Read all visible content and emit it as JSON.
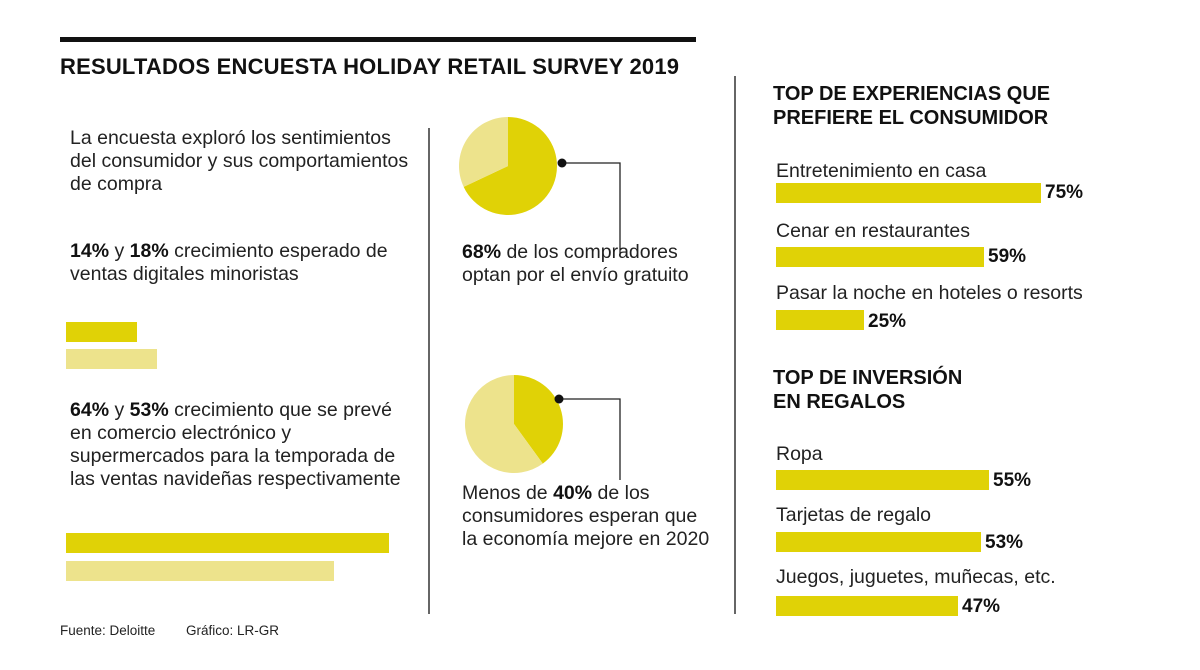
{
  "title": "RESULTADOS ENCUESTA HOLIDAY RETAIL SURVEY 2019",
  "colors": {
    "accent": "#e0d206",
    "accent_light": "#ede38c",
    "rule": "#111111"
  },
  "left": {
    "intro": "La encuesta exploró los sentimientos del consumidor y sus comportamientos de compra",
    "digital": {
      "a_value": "14%",
      "a_joiner": " y ",
      "b_value": "18%",
      "text": " crecimiento esperado de ventas digitales minoristas"
    },
    "ecommerce": {
      "a_value": "64%",
      "a_joiner": " y ",
      "b_value": "53%",
      "text": " crecimiento que se prevé en comercio electrónico y supermercados para la temporada de las ventas navideñas respectivamente"
    }
  },
  "middle": {
    "free_shipping": {
      "value": "68%",
      "text": " de los compradores optan por el envío gratuito"
    },
    "economy": {
      "prefix": "Menos de ",
      "value": "40%",
      "text": " de los consumidores esperan que la economía mejore en 2020"
    }
  },
  "right": {
    "experiences_title": "TOP DE EXPERIENCIAS QUE PREFIERE EL CONSUMIDOR",
    "experiences": [
      {
        "label": "Entretenimiento en casa",
        "pct": "75%"
      },
      {
        "label": "Cenar en restaurantes",
        "pct": "59%"
      },
      {
        "label": "Pasar la noche en hoteles o resorts",
        "pct": "25%"
      }
    ],
    "gifts_title": "TOP DE INVERSIÓN EN REGALOS",
    "gifts": [
      {
        "label": "Ropa",
        "pct": "55%"
      },
      {
        "label": "Tarjetas de regalo",
        "pct": "53%"
      },
      {
        "label": "Juegos, juguetes, muñecas, etc.",
        "pct": "47%"
      }
    ]
  },
  "footer": {
    "source": "Fuente: Deloitte",
    "credit": "Gráfico: LR-GR"
  },
  "chart_data": [
    {
      "type": "bar",
      "categories": [
        "Ventas digitales (a)",
        "Ventas digitales (b)"
      ],
      "values": [
        14,
        18
      ],
      "unit": "%"
    },
    {
      "type": "bar",
      "categories": [
        "Comercio electrónico",
        "Supermercados"
      ],
      "values": [
        64,
        53
      ],
      "unit": "%"
    },
    {
      "type": "pie",
      "values": [
        68,
        32
      ],
      "unit": "%"
    },
    {
      "type": "pie",
      "values": [
        40,
        60
      ],
      "unit": "%"
    },
    {
      "type": "bar",
      "title": "TOP DE EXPERIENCIAS QUE PREFIERE EL CONSUMIDOR",
      "categories": [
        "Entretenimiento en casa",
        "Cenar en restaurantes",
        "Pasar la noche en hoteles o resorts"
      ],
      "values": [
        75,
        59,
        25
      ],
      "unit": "%"
    },
    {
      "type": "bar",
      "title": "TOP DE INVERSIÓN EN REGALOS",
      "categories": [
        "Ropa",
        "Tarjetas de regalo",
        "Juegos, juguetes, muñecas, etc."
      ],
      "values": [
        55,
        53,
        47
      ],
      "unit": "%"
    }
  ]
}
